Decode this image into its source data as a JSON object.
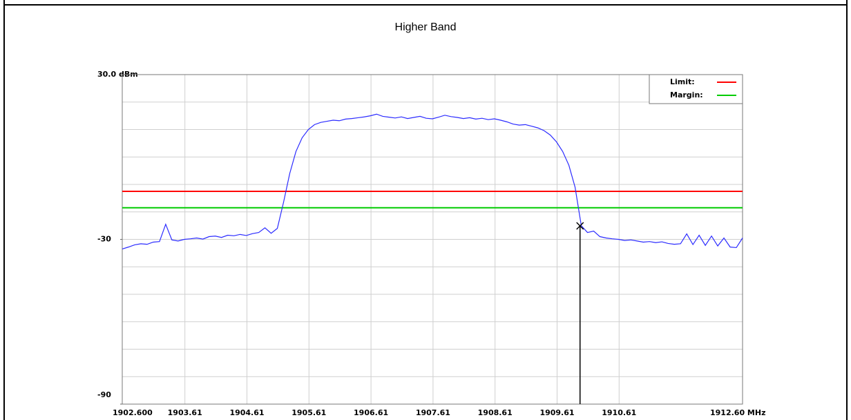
{
  "chart_data": {
    "type": "line",
    "title": "Higher Band",
    "xlim": [
      1902.6,
      1912.6
    ],
    "xticks": [
      {
        "value": 1902.6,
        "label": "1902.600"
      },
      1903.61,
      1904.61,
      1905.61,
      1906.61,
      1907.61,
      1908.61,
      1909.61,
      1910.61,
      {
        "value": 1912.6,
        "label": "1912.60 MHz"
      }
    ],
    "ylim": [
      -90,
      30
    ],
    "yticks": [
      {
        "value": 30,
        "label": "30.0  dBm"
      },
      -30,
      -90
    ],
    "grid": {
      "y_step": 10
    },
    "trace": {
      "color": "#2b2bff",
      "x": [
        1902.6,
        1902.7,
        1902.8,
        1902.9,
        1903.0,
        1903.1,
        1903.2,
        1903.3,
        1903.4,
        1903.5,
        1903.6,
        1903.7,
        1903.8,
        1903.9,
        1904.0,
        1904.1,
        1904.2,
        1904.3,
        1904.4,
        1904.5,
        1904.6,
        1904.7,
        1904.8,
        1904.9,
        1905.0,
        1905.1,
        1905.2,
        1905.3,
        1905.4,
        1905.5,
        1905.6,
        1905.7,
        1905.8,
        1905.9,
        1906.0,
        1906.1,
        1906.2,
        1906.3,
        1906.4,
        1906.5,
        1906.6,
        1906.7,
        1906.8,
        1906.9,
        1907.0,
        1907.1,
        1907.2,
        1907.3,
        1907.4,
        1907.5,
        1907.6,
        1907.7,
        1907.8,
        1907.9,
        1908.0,
        1908.1,
        1908.2,
        1908.3,
        1908.4,
        1908.5,
        1908.6,
        1908.7,
        1908.8,
        1908.9,
        1909.0,
        1909.1,
        1909.2,
        1909.3,
        1909.4,
        1909.5,
        1909.6,
        1909.7,
        1909.8,
        1909.9,
        1910.0,
        1910.1,
        1910.2,
        1910.3,
        1910.4,
        1910.5,
        1910.6,
        1910.7,
        1910.8,
        1910.9,
        1911.0,
        1911.1,
        1911.2,
        1911.3,
        1911.4,
        1911.5,
        1911.6,
        1911.7,
        1911.8,
        1911.9,
        1912.0,
        1912.1,
        1912.2,
        1912.3,
        1912.4,
        1912.5,
        1912.6
      ],
      "values": [
        -33.5,
        -32.8,
        -32.0,
        -31.6,
        -31.8,
        -31.0,
        -30.8,
        -24.5,
        -30.2,
        -30.6,
        -30.0,
        -29.8,
        -29.5,
        -29.9,
        -29.0,
        -28.8,
        -29.3,
        -28.5,
        -28.7,
        -28.2,
        -28.6,
        -27.9,
        -27.5,
        -25.8,
        -27.8,
        -26.0,
        -16.5,
        -6.0,
        2.0,
        7.0,
        10.0,
        11.8,
        12.6,
        13.0,
        13.4,
        13.2,
        13.8,
        14.0,
        14.3,
        14.6,
        15.0,
        15.6,
        14.8,
        14.5,
        14.2,
        14.6,
        14.0,
        14.4,
        14.8,
        14.1,
        13.9,
        14.5,
        15.2,
        14.7,
        14.4,
        14.0,
        14.3,
        13.8,
        14.1,
        13.6,
        13.9,
        13.4,
        12.8,
        12.0,
        11.6,
        11.8,
        11.2,
        10.6,
        9.6,
        8.0,
        5.5,
        2.0,
        -3.0,
        -11.0,
        -25.0,
        -27.5,
        -27.0,
        -29.0,
        -29.5,
        -29.8,
        -30.0,
        -30.4,
        -30.2,
        -30.6,
        -31.0,
        -30.8,
        -31.2,
        -30.9,
        -31.5,
        -31.8,
        -31.6,
        -28.0,
        -31.9,
        -28.5,
        -32.2,
        -28.8,
        -32.4,
        -29.5,
        -32.8,
        -33.0,
        -29.5
      ]
    },
    "lines": [
      {
        "name": "Limit:",
        "value": -12.5,
        "color": "#ff0000"
      },
      {
        "name": "Margin:",
        "value": -18.5,
        "color": "#00cc00"
      }
    ],
    "marker": {
      "x": 1909.98,
      "value": -25.1
    },
    "legend": "upper right"
  }
}
